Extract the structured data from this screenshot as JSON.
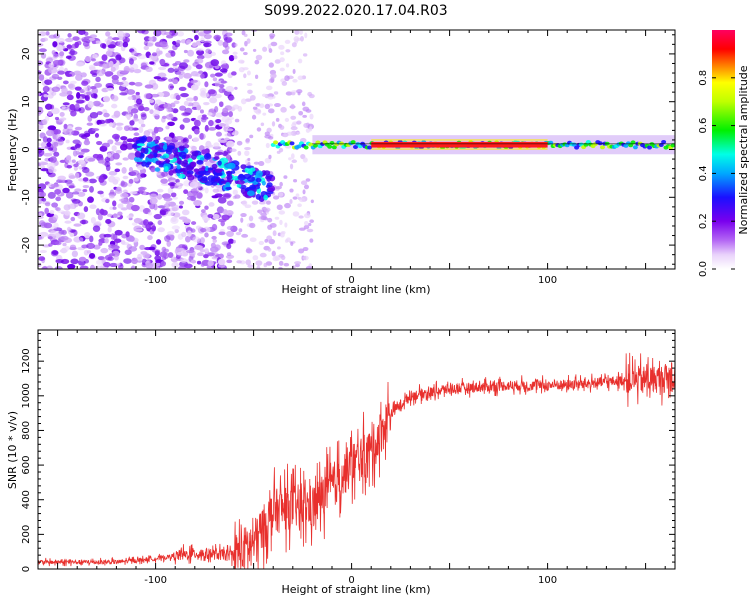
{
  "title": "S099.2022.020.17.04.R03",
  "chart_data": [
    {
      "type": "heatmap",
      "xlabel": "Height of straight line (km)",
      "ylabel": "Frequency (Hz)",
      "xlim": [
        -160,
        165
      ],
      "ylim": [
        -25,
        25
      ],
      "x_ticks": [
        -100,
        0,
        100
      ],
      "y_ticks": [
        -20,
        -10,
        0,
        10,
        20
      ],
      "colorbar": {
        "label": "Normalized spectral amplitude",
        "range": [
          0,
          1
        ],
        "ticks": [
          0.0,
          0.2,
          0.4,
          0.6,
          0.8
        ]
      },
      "description_points": {
        "carrier_line": {
          "x_range": [
            -20,
            165
          ],
          "frequency": 1,
          "amplitude": 0.75
        },
        "drift_segment": {
          "x_range": [
            -110,
            -40
          ],
          "frequency_start": 0,
          "frequency_end": -8
        }
      }
    },
    {
      "type": "line",
      "xlabel": "Height of straight line (km)",
      "ylabel": "SNR (10 * v/v)",
      "xlim": [
        -160,
        165
      ],
      "ylim": [
        0,
        1380
      ],
      "x_ticks": [
        -100,
        0,
        100
      ],
      "y_ticks": [
        0,
        200,
        400,
        600,
        800,
        1000,
        1200
      ],
      "series_color": "#e8302d",
      "profile": {
        "x": [
          -160,
          -120,
          -100,
          -80,
          -60,
          -50,
          -40,
          -30,
          -20,
          -10,
          0,
          10,
          20,
          30,
          50,
          80,
          100,
          120,
          140,
          165
        ],
        "y": [
          40,
          40,
          60,
          90,
          80,
          150,
          330,
          360,
          360,
          480,
          600,
          680,
          900,
          1000,
          1040,
          1060,
          1060,
          1070,
          1090,
          1100
        ]
      }
    }
  ]
}
